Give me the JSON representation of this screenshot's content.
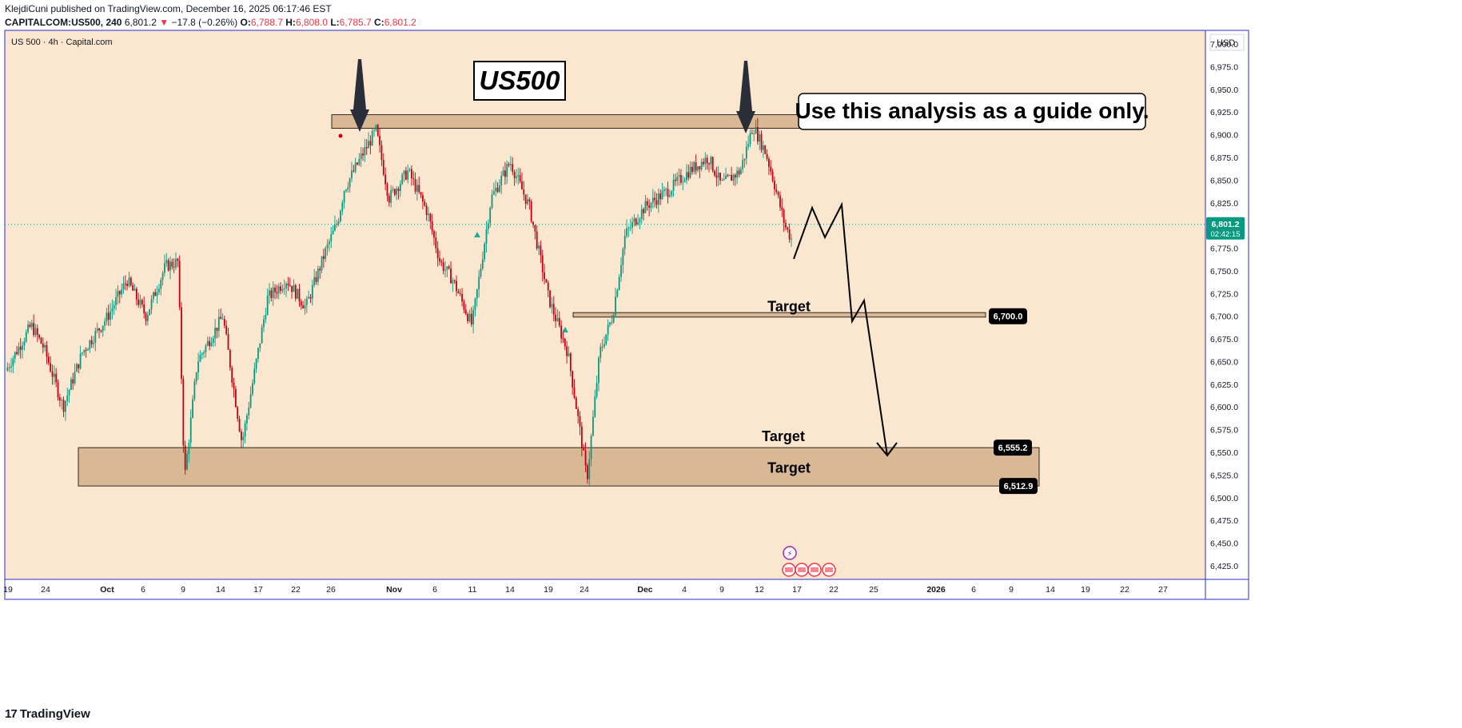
{
  "header": {
    "line1": "KlejdiCuni published on TradingView.com, December 16, 2025 06:17:46 EST",
    "symbol": "CAPITALCOM:US500, 240",
    "last": "6,801.2",
    "arrow": "▼",
    "change": "−17.8 (−0.26%)",
    "o_label": "O:",
    "o_value": "6,788.7",
    "h_label": "H:",
    "h_value": "6,808.0",
    "l_label": "L:",
    "l_value": "6,785.7",
    "c_label": "C:",
    "c_value": "6,801.2"
  },
  "footer": {
    "brand_mark": "17",
    "brand": "TradingView"
  },
  "colors": {
    "background": "#fbe6cf",
    "zone_fill": "#d9b896",
    "up": "#22ab94",
    "candle_up": "#089981",
    "candle_down": "#c3000f",
    "frame": "#2a2ecf",
    "badge_red": "#f23645",
    "badge_green": "#089981"
  },
  "chart_data": {
    "type": "candlestick",
    "title": "US 500 · 4h · Capital.com",
    "currency": "USD",
    "y_ticks": [
      7000,
      6975,
      6950,
      6925,
      6900,
      6875,
      6850,
      6825,
      6800,
      6775,
      6750,
      6725,
      6700,
      6675,
      6650,
      6625,
      6600,
      6575,
      6550,
      6525,
      6500,
      6475,
      6450,
      6425
    ],
    "y_tick_labels": [
      "7,000.0",
      "6,975.0",
      "6,950.0",
      "6,925.0",
      "6,900.0",
      "6,875.0",
      "6,850.0",
      "6,825.0",
      "6,800.0",
      "6,775.0",
      "6,750.0",
      "6,725.0",
      "6,700.0",
      "6,675.0",
      "6,650.0",
      "6,625.0",
      "6,600.0",
      "6,575.0",
      "6,550.0",
      "6,525.0",
      "6,500.0",
      "6,475.0",
      "6,450.0",
      "6,425.0"
    ],
    "ylim": [
      6410,
      7015
    ],
    "x_ticks": [
      "19",
      "24",
      "Oct",
      "6",
      "9",
      "14",
      "17",
      "22",
      "26",
      "Nov",
      "6",
      "11",
      "14",
      "19",
      "24",
      "Dec",
      "4",
      "9",
      "12",
      "17",
      "22",
      "25",
      "2026",
      "6",
      "9",
      "14",
      "19",
      "22",
      "27"
    ],
    "x_tick_bold": [
      "Oct",
      "Nov",
      "Dec",
      "2026"
    ],
    "price_path": [
      [
        0,
        6640
      ],
      [
        4,
        6690
      ],
      [
        6,
        6665
      ],
      [
        9,
        6600
      ],
      [
        12,
        6660
      ],
      [
        16,
        6700
      ],
      [
        19,
        6740
      ],
      [
        22,
        6700
      ],
      [
        25,
        6755
      ],
      [
        27,
        6760
      ],
      [
        28,
        6520
      ],
      [
        30,
        6650
      ],
      [
        34,
        6700
      ],
      [
        37,
        6560
      ],
      [
        41,
        6720
      ],
      [
        44,
        6740
      ],
      [
        47,
        6710
      ],
      [
        50,
        6770
      ],
      [
        52,
        6805
      ],
      [
        53,
        6840
      ],
      [
        56,
        6880
      ],
      [
        58,
        6905
      ],
      [
        60,
        6830
      ],
      [
        63,
        6860
      ],
      [
        66,
        6815
      ],
      [
        68,
        6760
      ],
      [
        70,
        6740
      ],
      [
        73,
        6690
      ],
      [
        76,
        6830
      ],
      [
        79,
        6870
      ],
      [
        82,
        6820
      ],
      [
        85,
        6720
      ],
      [
        88,
        6660
      ],
      [
        90,
        6570
      ],
      [
        91,
        6520
      ],
      [
        93,
        6660
      ],
      [
        95,
        6700
      ],
      [
        97,
        6790
      ],
      [
        100,
        6820
      ],
      [
        104,
        6840
      ],
      [
        107,
        6860
      ],
      [
        110,
        6875
      ],
      [
        112,
        6845
      ],
      [
        115,
        6860
      ],
      [
        117,
        6910
      ],
      [
        119,
        6880
      ],
      [
        120,
        6855
      ],
      [
        122,
        6800
      ],
      [
        123,
        6785
      ]
    ],
    "current_price": 6801.2,
    "current_price_label": "6,801.2",
    "countdown": "02:42:15",
    "zones": [
      {
        "name": "resistance",
        "top": 6922,
        "bottom": 6907,
        "label": "6,920.0"
      },
      {
        "name": "target-1",
        "top": 6704,
        "bottom": 6699,
        "label": "6,700.0",
        "text": "Target"
      },
      {
        "name": "target-2",
        "top": 6555.2,
        "bottom": 6512.9,
        "label_top": "6,555.2",
        "label_bottom": "6,512.9",
        "text_top": "Target",
        "text_bottom": "Target"
      }
    ],
    "annotations": {
      "logo_text": "US500",
      "note": "Use this analysis as a guide only.",
      "arrows": 2
    }
  }
}
